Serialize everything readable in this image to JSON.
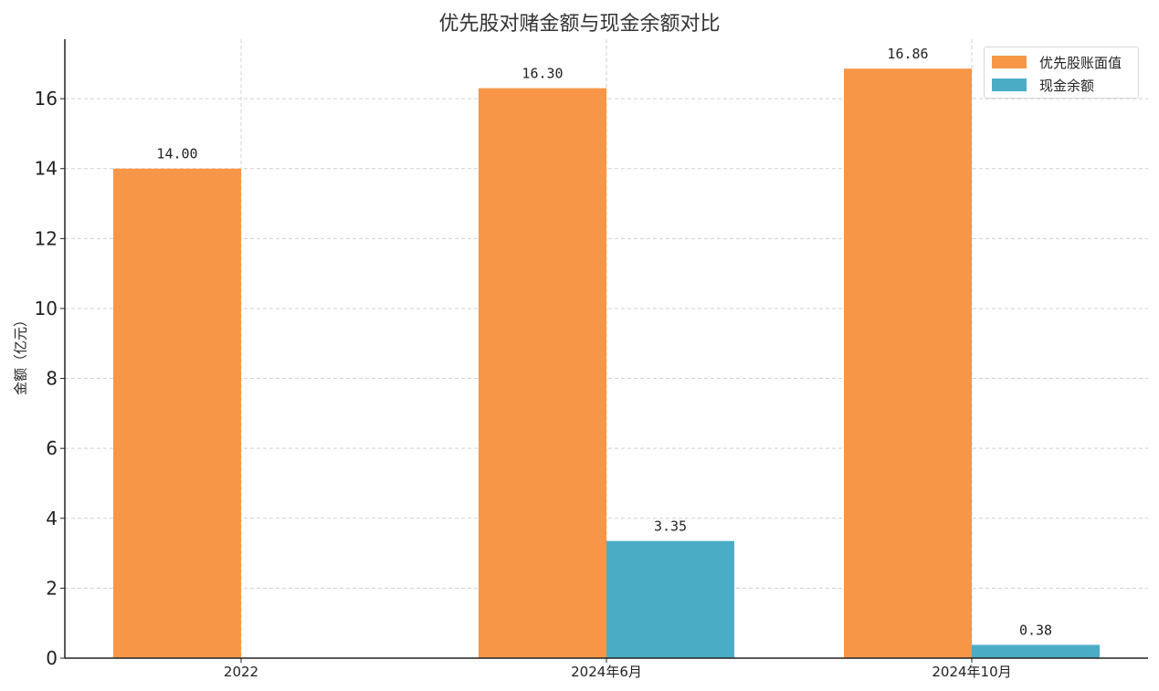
{
  "chart_data": {
    "type": "bar",
    "title": "优先股对赌金额与现金余额对比",
    "xlabel": "",
    "ylabel": "金额（亿元）",
    "categories": [
      "2022",
      "2024年6月",
      "2024年10月"
    ],
    "series": [
      {
        "name": "优先股账面值",
        "values": [
          14.0,
          16.3,
          16.86
        ],
        "color": "#F79646"
      },
      {
        "name": "现金余额",
        "values": [
          null,
          3.35,
          0.38
        ],
        "color": "#4BACC6"
      }
    ],
    "data_labels": [
      [
        "14.00",
        "16.30",
        "16.86"
      ],
      [
        "",
        "3.35",
        "0.38"
      ]
    ],
    "ylim": [
      0,
      17.7
    ],
    "yticks": [
      0,
      2,
      4,
      6,
      8,
      10,
      12,
      14,
      16
    ],
    "grid": true,
    "legend_position": "top-right"
  }
}
